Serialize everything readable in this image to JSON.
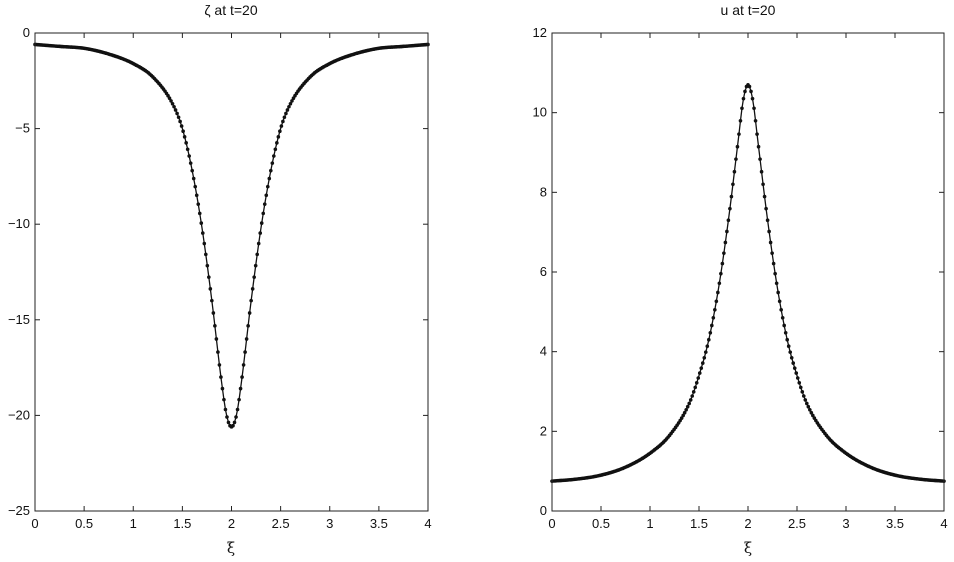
{
  "chart_data": [
    {
      "type": "line",
      "title": "ζ  at  t=20",
      "xlabel": "ξ",
      "ylabel": "",
      "xlim": [
        0,
        4
      ],
      "ylim": [
        -25,
        0
      ],
      "xticks": [
        "0",
        "0.5",
        "1",
        "1.5",
        "2",
        "2.5",
        "3",
        "3.5",
        "4"
      ],
      "yticks": [
        "-25",
        "-20",
        "-15",
        "-10",
        "-5",
        "0"
      ],
      "grid": false,
      "markers": true,
      "series": [
        {
          "x": [
            0,
            0.25,
            0.5,
            0.75,
            1.0,
            1.2,
            1.4,
            1.5,
            1.6,
            1.7,
            1.8,
            1.9,
            1.95,
            2.0,
            2.05,
            2.1,
            2.2,
            2.3,
            2.4,
            2.5,
            2.6,
            2.8,
            3.0,
            3.25,
            3.5,
            3.75,
            4.0
          ],
          "values": [
            -0.6,
            -0.7,
            -0.8,
            -1.1,
            -1.6,
            -2.3,
            -3.7,
            -5.0,
            -7.2,
            -10.2,
            -14.0,
            -18.3,
            -20.0,
            -20.6,
            -20.0,
            -18.3,
            -14.0,
            -10.2,
            -7.2,
            -5.0,
            -3.7,
            -2.3,
            -1.6,
            -1.1,
            -0.8,
            -0.7,
            -0.6
          ]
        }
      ]
    },
    {
      "type": "line",
      "title": "u  at  t=20",
      "xlabel": "ξ",
      "ylabel": "",
      "xlim": [
        0,
        4
      ],
      "ylim": [
        0,
        12
      ],
      "xticks": [
        "0",
        "0.5",
        "1",
        "1.5",
        "2",
        "2.5",
        "3",
        "3.5",
        "4"
      ],
      "yticks": [
        "0",
        "2",
        "4",
        "6",
        "8",
        "10",
        "12"
      ],
      "grid": false,
      "markers": true,
      "series": [
        {
          "x": [
            0,
            0.25,
            0.5,
            0.75,
            1.0,
            1.2,
            1.4,
            1.5,
            1.6,
            1.7,
            1.8,
            1.9,
            1.95,
            2.0,
            2.05,
            2.1,
            2.2,
            2.3,
            2.4,
            2.5,
            2.6,
            2.8,
            3.0,
            3.25,
            3.5,
            3.75,
            4.0
          ],
          "values": [
            0.75,
            0.8,
            0.9,
            1.1,
            1.45,
            1.9,
            2.7,
            3.4,
            4.3,
            5.6,
            7.3,
            9.3,
            10.3,
            10.7,
            10.3,
            9.3,
            7.3,
            5.6,
            4.3,
            3.4,
            2.7,
            1.9,
            1.45,
            1.1,
            0.9,
            0.8,
            0.75
          ]
        }
      ]
    }
  ]
}
